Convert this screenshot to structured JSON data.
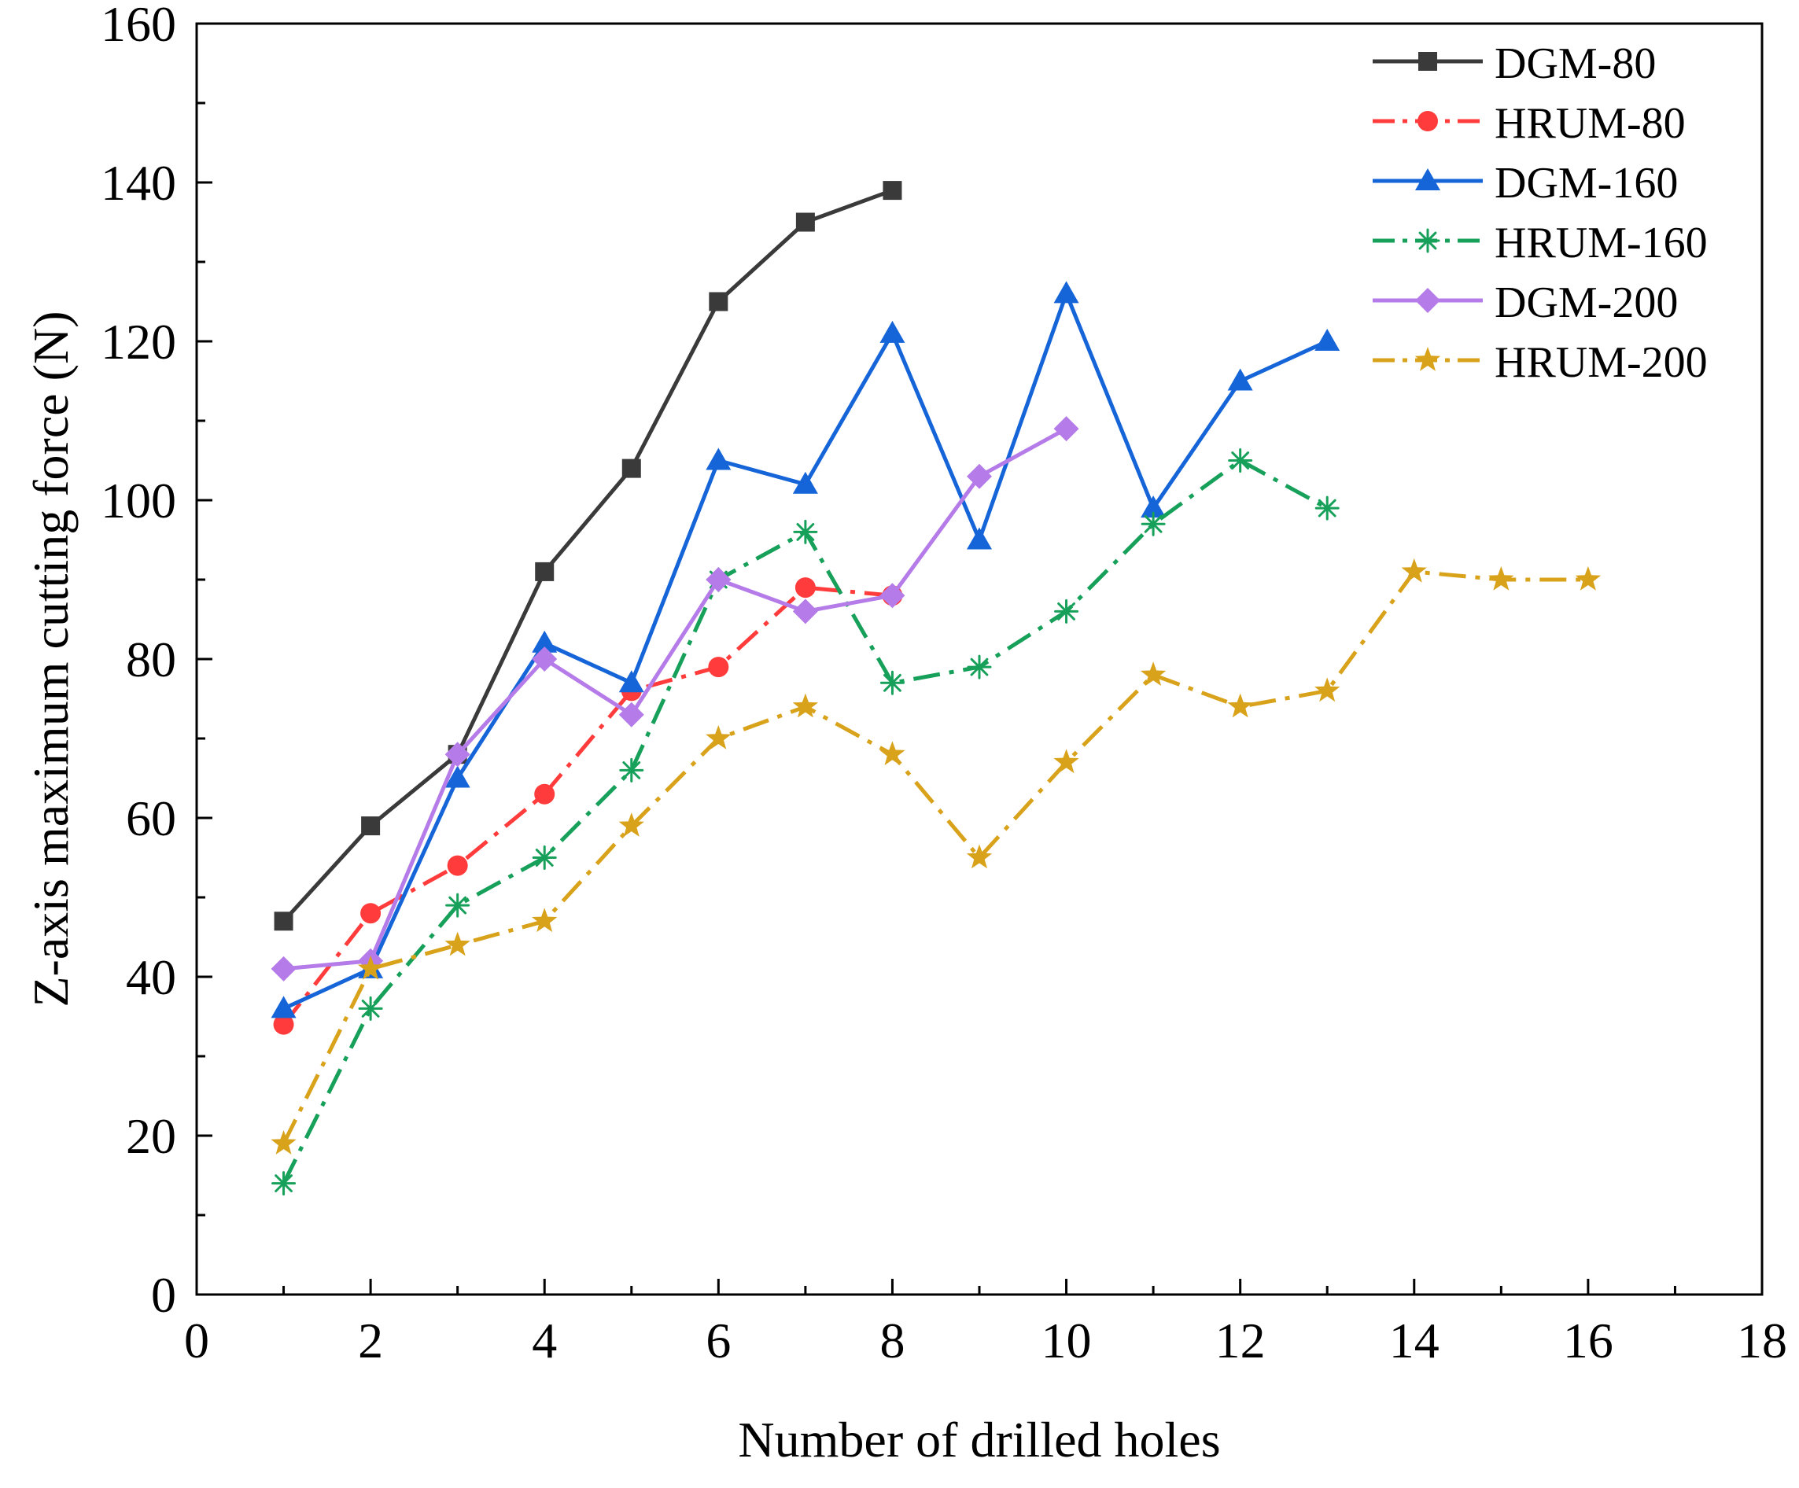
{
  "chart_data": {
    "type": "line",
    "title": "",
    "xlabel": "Number of drilled holes",
    "ylabel": "Z-axis maximum cutting force (N)",
    "xlim": [
      0,
      18
    ],
    "ylim": [
      0,
      160
    ],
    "xticks": [
      0,
      2,
      4,
      6,
      8,
      10,
      12,
      14,
      16,
      18
    ],
    "yticks": [
      0,
      20,
      40,
      60,
      80,
      100,
      120,
      140,
      160
    ],
    "x_tick_labels": [
      "0",
      "2",
      "4",
      "6",
      "8",
      "10",
      "12",
      "14",
      "16",
      "18"
    ],
    "y_tick_labels": [
      "0",
      "20",
      "40",
      "60",
      "80",
      "100",
      "120",
      "140",
      "160"
    ],
    "grid": false,
    "legend_position": "top-right",
    "series": [
      {
        "name": "DGM-80",
        "color": "#3a3a3a",
        "marker": "square",
        "dash": "solid",
        "x": [
          1,
          2,
          3,
          4,
          5,
          6,
          7,
          8
        ],
        "y": [
          47,
          59,
          68,
          91,
          104,
          125,
          135,
          139
        ]
      },
      {
        "name": "HRUM-80",
        "color": "#ff3b3b",
        "marker": "circle",
        "dash": "dashdot",
        "x": [
          1,
          2,
          3,
          4,
          5,
          6,
          7,
          8
        ],
        "y": [
          34,
          48,
          54,
          63,
          76,
          79,
          89,
          88
        ]
      },
      {
        "name": "DGM-160",
        "color": "#1565d8",
        "marker": "triangle",
        "dash": "solid",
        "x": [
          1,
          2,
          3,
          4,
          5,
          6,
          7,
          8,
          9,
          10,
          11,
          12,
          13
        ],
        "y": [
          36,
          41,
          65,
          82,
          77,
          105,
          102,
          121,
          95,
          126,
          99,
          115,
          120
        ]
      },
      {
        "name": "HRUM-160",
        "color": "#17a05a",
        "marker": "asterisk",
        "dash": "dashdot",
        "x": [
          1,
          2,
          3,
          4,
          5,
          6,
          7,
          8,
          9,
          10,
          11,
          12,
          13
        ],
        "y": [
          14,
          36,
          49,
          55,
          66,
          90,
          96,
          77,
          79,
          86,
          97,
          105,
          99
        ]
      },
      {
        "name": "DGM-200",
        "color": "#b57be8",
        "marker": "diamond",
        "dash": "solid",
        "x": [
          1,
          2,
          3,
          4,
          5,
          6,
          7,
          8,
          9,
          10
        ],
        "y": [
          41,
          42,
          68,
          80,
          73,
          90,
          86,
          88,
          103,
          109
        ]
      },
      {
        "name": "HRUM-200",
        "color": "#d9a21b",
        "marker": "star",
        "dash": "dashdot",
        "x": [
          1,
          2,
          3,
          4,
          5,
          6,
          7,
          8,
          9,
          10,
          11,
          12,
          13,
          14,
          15,
          16
        ],
        "y": [
          19,
          41,
          44,
          47,
          59,
          70,
          74,
          68,
          55,
          67,
          78,
          74,
          76,
          91,
          90,
          90
        ]
      }
    ]
  }
}
